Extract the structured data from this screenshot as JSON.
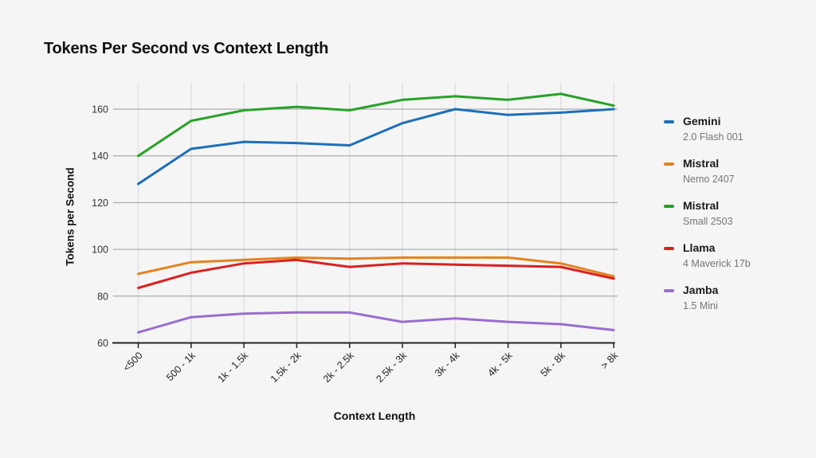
{
  "page": {
    "background": "#f5f5f6",
    "grid_color_horizontal": "#9b9b9b",
    "grid_color_vertical": "#e2e2e4",
    "axis_color": "#222222"
  },
  "chart_data": {
    "type": "line",
    "title": "Tokens Per Second vs Context Length",
    "xlabel": "Context Length",
    "ylabel": "Tokens per Second",
    "categories": [
      "<500",
      "500 - 1k",
      "1k - 1.5k",
      "1.5k - 2k",
      "2k - 2.5k",
      "2.5k - 3k",
      "3k - 4k",
      "4k - 5k",
      "5k - 8k",
      "> 8k"
    ],
    "series": [
      {
        "name": "Gemini",
        "subtitle": "2.0 Flash 001",
        "color": "#1d6fba",
        "values": [
          128,
          143,
          146,
          145.5,
          144.5,
          154,
          160,
          157.5,
          158.5,
          160
        ]
      },
      {
        "name": "Mistral",
        "subtitle": "Nemo 2407",
        "color": "#e5821e",
        "values": [
          89.5,
          94.5,
          95.5,
          96.5,
          96,
          96.5,
          96.5,
          96.5,
          94,
          88.5
        ]
      },
      {
        "name": "Mistral",
        "subtitle": "Small 2503",
        "color": "#27a228",
        "values": [
          140,
          155,
          159.5,
          161,
          159.5,
          164,
          165.5,
          164,
          166.5,
          161.5
        ]
      },
      {
        "name": "Llama",
        "subtitle": "4 Maverick 17b",
        "color": "#d92121",
        "values": [
          83.5,
          90,
          94,
          95.5,
          92.5,
          94,
          93.5,
          93,
          92.5,
          87.5
        ]
      },
      {
        "name": "Jamba",
        "subtitle": "1.5 Mini",
        "color": "#9a6dd0",
        "values": [
          64.5,
          71,
          72.5,
          73,
          73,
          69,
          70.5,
          69,
          68,
          65.5
        ]
      }
    ],
    "ylim": [
      60,
      170
    ],
    "yticks": [
      60,
      80,
      100,
      120,
      140,
      160
    ],
    "grid": {
      "horizontal": true,
      "vertical": true
    },
    "legend_position": "right"
  }
}
